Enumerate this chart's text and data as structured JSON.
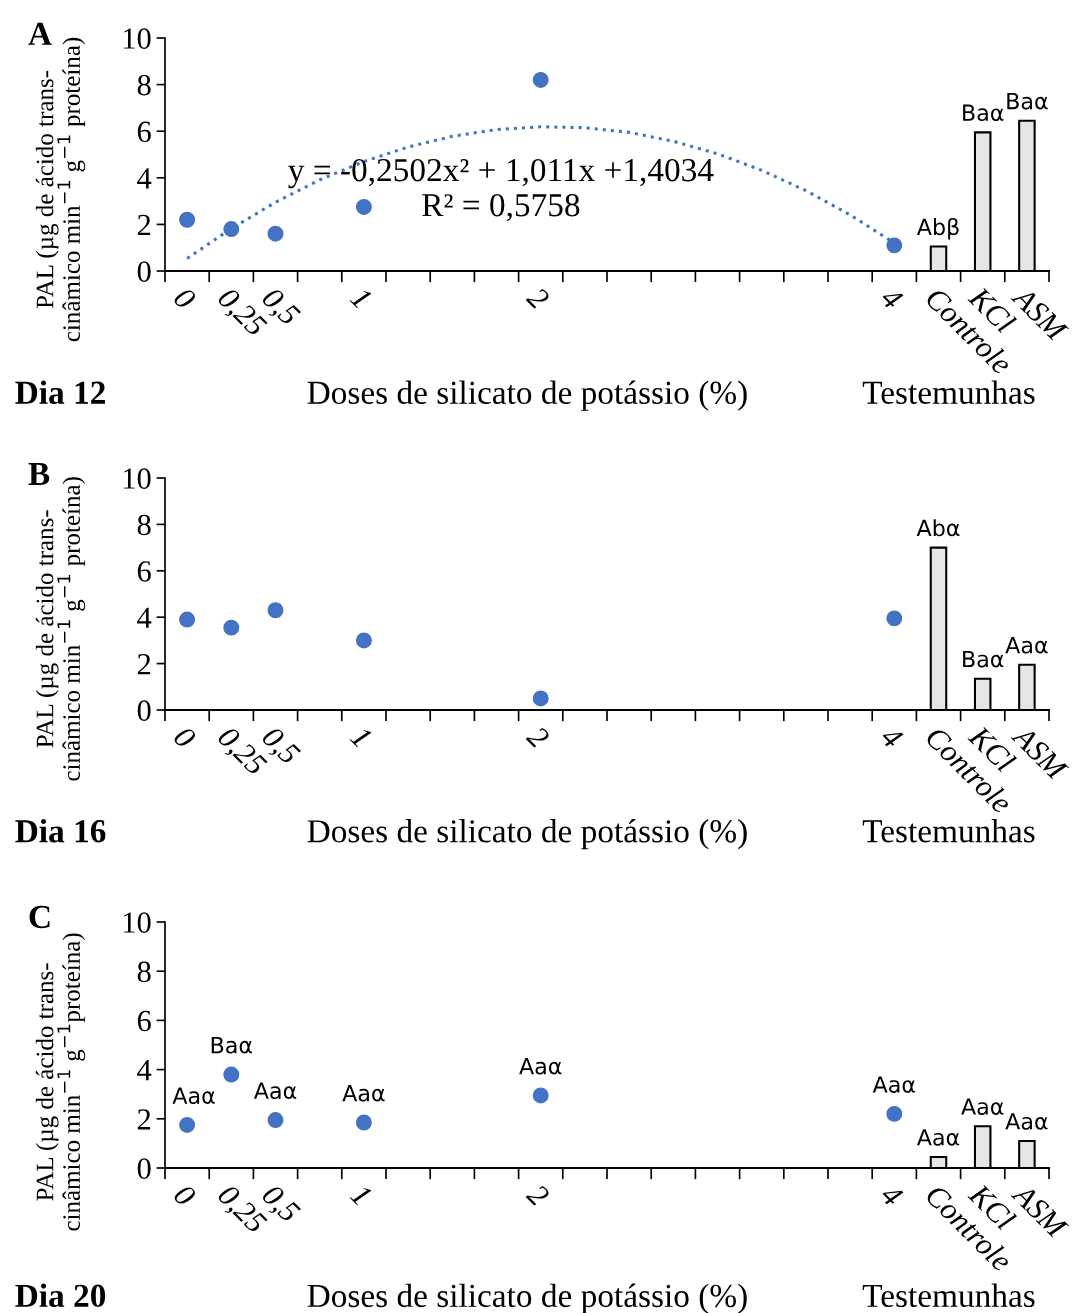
{
  "chart_data": [
    {
      "type": "scatter",
      "title": "A",
      "xlabel": "Doses de silicato de potássio (%)",
      "ylabel": "PAL (µg de ácido trans-\ncinâmico min$^{−1}$ g$^{−1}$ proteína)",
      "categories": [
        "0",
        "0,25",
        "0,5",
        null,
        "1",
        null,
        null,
        null,
        "2",
        null,
        null,
        null,
        null,
        null,
        null,
        null,
        "4",
        "Controle",
        "KCl",
        "ASM"
      ],
      "ylim": [
        0,
        10
      ],
      "yticks": [
        0,
        2,
        4,
        6,
        8,
        10
      ],
      "grid": false,
      "legend": false,
      "annotations": [
        "Dia 12",
        "Testemunhas",
        "y = -0,2502x² + 1,011x +1,4034",
        "R² = 0,5758"
      ],
      "series": [
        {
          "marker": "circle",
          "color": "#4472c4",
          "values": [
            2.2,
            1.8,
            1.6,
            null,
            2.75,
            null,
            null,
            null,
            8.2,
            null,
            null,
            null,
            null,
            null,
            null,
            null,
            1.1,
            null,
            null,
            null
          ]
        },
        {
          "type": "line",
          "line_style": "dotted",
          "color": "#4472c4",
          "values": [
            0.54,
            1.82,
            2.95,
            3.91,
            4.7,
            5.32,
            5.78,
            6.07,
            6.19,
            6.15,
            5.95,
            5.57,
            5.03,
            4.32,
            3.45,
            2.41,
            1.2,
            null,
            null,
            null
          ]
        },
        {
          "type": "bar",
          "color": "#e7e6e6",
          "values": [
            null,
            null,
            null,
            null,
            null,
            null,
            null,
            null,
            null,
            null,
            null,
            null,
            null,
            null,
            null,
            null,
            null,
            1.05,
            5.95,
            6.45
          ],
          "value_labels": [
            null,
            null,
            null,
            null,
            null,
            null,
            null,
            null,
            null,
            null,
            null,
            null,
            null,
            null,
            null,
            null,
            null,
            "Abβ",
            "Baα",
            "Baα"
          ]
        }
      ]
    },
    {
      "type": "scatter",
      "title": "B",
      "xlabel": "Doses de silicato de potássio (%)",
      "ylabel": "PAL (µg de ácido trans-\ncinâmico min$^{−1}$ g$^{−1}$ proteína)",
      "categories": [
        "0",
        "0,25",
        "0,5",
        null,
        "1",
        null,
        null,
        null,
        "2",
        null,
        null,
        null,
        null,
        null,
        null,
        null,
        "4",
        "Controle",
        "KCl",
        "ASM"
      ],
      "ylim": [
        0,
        10
      ],
      "yticks": [
        0,
        2,
        4,
        6,
        8,
        10
      ],
      "grid": false,
      "legend": false,
      "annotations": [
        "Dia 16",
        "Testemunhas"
      ],
      "series": [
        {
          "marker": "circle",
          "color": "#4472c4",
          "values": [
            3.9,
            3.55,
            4.3,
            null,
            3.0,
            null,
            null,
            null,
            0.5,
            null,
            null,
            null,
            null,
            null,
            null,
            null,
            3.95,
            null,
            null,
            null
          ]
        },
        {
          "type": "bar",
          "color": "#e7e6e6",
          "values": [
            null,
            null,
            null,
            null,
            null,
            null,
            null,
            null,
            null,
            null,
            null,
            null,
            null,
            null,
            null,
            null,
            null,
            7.0,
            1.35,
            1.95
          ],
          "value_labels": [
            null,
            null,
            null,
            null,
            null,
            null,
            null,
            null,
            null,
            null,
            null,
            null,
            null,
            null,
            null,
            null,
            null,
            "Abα",
            "Baα",
            "Aaα"
          ]
        }
      ]
    },
    {
      "type": "scatter",
      "title": "C",
      "xlabel": "Doses de silicato de potássio (%)",
      "ylabel": "PAL (µg de ácido trans-\ncinâmico min$^{−1}$ g$^{−1}$proteína)",
      "categories": [
        "0",
        "0,25",
        "0,5",
        null,
        "1",
        null,
        null,
        null,
        "2",
        null,
        null,
        null,
        null,
        null,
        null,
        null,
        "4",
        "Controle",
        "KCl",
        "ASM"
      ],
      "ylim": [
        0,
        10
      ],
      "yticks": [
        0,
        2,
        4,
        6,
        8,
        10
      ],
      "grid": false,
      "legend": false,
      "annotations": [
        "Dia 20",
        "Testemunhas"
      ],
      "series": [
        {
          "marker": "circle",
          "color": "#4472c4",
          "values": [
            1.75,
            3.8,
            1.95,
            null,
            1.85,
            null,
            null,
            null,
            2.95,
            null,
            null,
            null,
            null,
            null,
            null,
            null,
            2.2,
            null,
            null,
            null
          ],
          "value_labels": [
            "Aaα",
            "Baα",
            "Aaα",
            null,
            "Aaα",
            null,
            null,
            null,
            "Aaα",
            null,
            null,
            null,
            null,
            null,
            null,
            null,
            "Aaα",
            null,
            null,
            null
          ]
        },
        {
          "type": "bar",
          "color": "#e7e6e6",
          "values": [
            null,
            null,
            null,
            null,
            null,
            null,
            null,
            null,
            null,
            null,
            null,
            null,
            null,
            null,
            null,
            null,
            null,
            0.45,
            1.7,
            1.1
          ],
          "value_labels": [
            null,
            null,
            null,
            null,
            null,
            null,
            null,
            null,
            null,
            null,
            null,
            null,
            null,
            null,
            null,
            null,
            null,
            "Aaα",
            "Aaα",
            "Aaα"
          ]
        }
      ]
    }
  ]
}
